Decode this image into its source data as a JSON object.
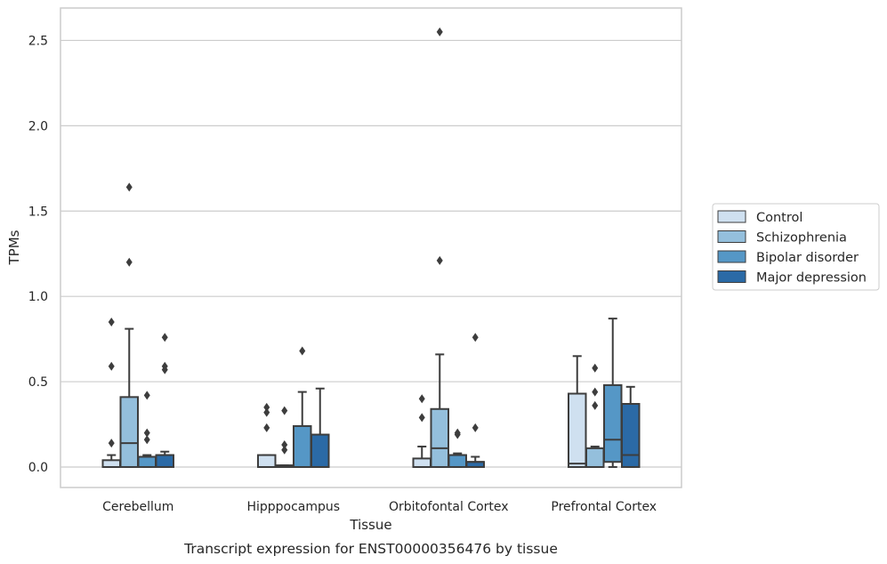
{
  "chart_data": {
    "type": "box",
    "title": "",
    "caption": "Transcript expression for ENST00000356476 by tissue",
    "xlabel": "Tissue",
    "ylabel": "TPMs",
    "ylim": [
      -0.12,
      2.69
    ],
    "yticks": [
      "0.0",
      "0.5",
      "1.0",
      "1.5",
      "2.0",
      "2.5"
    ],
    "ytick_values": [
      0,
      0.5,
      1.0,
      1.5,
      2.0,
      2.5
    ],
    "grid": "horizontal",
    "legend_position": "right",
    "categories": [
      "Cerebellum",
      "Hipppocampus",
      "Orbitofontal Cortex",
      "Prefrontal Cortex"
    ],
    "series": [
      {
        "name": "Control",
        "color": "#cfe0f0",
        "boxes": [
          {
            "q1": 0.0,
            "median": 0.0,
            "q3": 0.04,
            "whisker_low": 0.0,
            "whisker_high": 0.07,
            "outliers": [
              0.14,
              0.59,
              0.85
            ]
          },
          {
            "q1": 0.0,
            "median": 0.0,
            "q3": 0.07,
            "whisker_low": 0.0,
            "whisker_high": 0.07,
            "outliers": [
              0.23,
              0.32,
              0.35
            ]
          },
          {
            "q1": 0.0,
            "median": 0.0,
            "q3": 0.05,
            "whisker_low": 0.0,
            "whisker_high": 0.12,
            "outliers": [
              0.29,
              0.4
            ]
          },
          {
            "q1": 0.0,
            "median": 0.02,
            "q3": 0.43,
            "whisker_low": 0.0,
            "whisker_high": 0.65,
            "outliers": []
          }
        ]
      },
      {
        "name": "Schizophrenia",
        "color": "#94bfdc",
        "boxes": [
          {
            "q1": 0.0,
            "median": 0.14,
            "q3": 0.41,
            "whisker_low": 0.0,
            "whisker_high": 0.81,
            "outliers": [
              1.2,
              1.64
            ]
          },
          {
            "q1": 0.0,
            "median": 0.0,
            "q3": 0.01,
            "whisker_low": 0.0,
            "whisker_high": 0.01,
            "outliers": [
              0.1,
              0.13,
              0.33
            ]
          },
          {
            "q1": 0.0,
            "median": 0.11,
            "q3": 0.34,
            "whisker_low": 0.0,
            "whisker_high": 0.66,
            "outliers": [
              1.21,
              2.55
            ]
          },
          {
            "q1": 0.0,
            "median": 0.0,
            "q3": 0.11,
            "whisker_low": 0.0,
            "whisker_high": 0.12,
            "outliers": [
              0.36,
              0.44,
              0.58
            ]
          }
        ]
      },
      {
        "name": "Bipolar disorder",
        "color": "#5597c6",
        "boxes": [
          {
            "q1": 0.0,
            "median": 0.06,
            "q3": 0.06,
            "whisker_low": 0.0,
            "whisker_high": 0.07,
            "outliers": [
              0.16,
              0.2,
              0.42
            ]
          },
          {
            "q1": 0.0,
            "median": 0.0,
            "q3": 0.24,
            "whisker_low": 0.0,
            "whisker_high": 0.44,
            "outliers": [
              0.68
            ]
          },
          {
            "q1": 0.0,
            "median": 0.07,
            "q3": 0.07,
            "whisker_low": 0.0,
            "whisker_high": 0.08,
            "outliers": [
              0.19,
              0.2
            ]
          },
          {
            "q1": 0.03,
            "median": 0.16,
            "q3": 0.48,
            "whisker_low": 0.0,
            "whisker_high": 0.87,
            "outliers": []
          }
        ]
      },
      {
        "name": "Major depression",
        "color": "#2b6aa6",
        "boxes": [
          {
            "q1": 0.0,
            "median": 0.07,
            "q3": 0.07,
            "whisker_low": 0.0,
            "whisker_high": 0.09,
            "outliers": [
              0.57,
              0.59,
              0.76
            ]
          },
          {
            "q1": 0.0,
            "median": 0.0,
            "q3": 0.19,
            "whisker_low": 0.0,
            "whisker_high": 0.46,
            "outliers": []
          },
          {
            "q1": 0.0,
            "median": 0.03,
            "q3": 0.03,
            "whisker_low": 0.0,
            "whisker_high": 0.06,
            "outliers": [
              0.23,
              0.76
            ]
          },
          {
            "q1": 0.0,
            "median": 0.07,
            "q3": 0.37,
            "whisker_low": 0.0,
            "whisker_high": 0.47,
            "outliers": []
          }
        ]
      }
    ]
  }
}
